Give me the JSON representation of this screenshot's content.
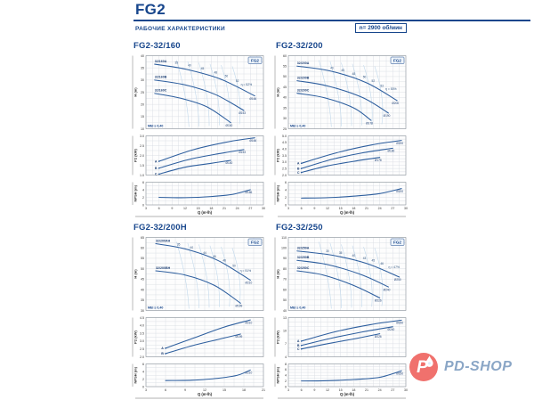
{
  "page": {
    "title": "FG2",
    "subtitle": "РАБОЧИЕ ХАРАКТЕРИСТИКИ",
    "rpm": "n= 2900 об/мин"
  },
  "logo": {
    "letter": "P",
    "text": "PD-SHOP",
    "accent": "#f0716d",
    "blue": "#8aa6c6"
  },
  "colors": {
    "brand": "#17468c",
    "curve": "#2d5e9e",
    "grid": "#d9dee3",
    "iso": "#c2d9ec"
  },
  "chart_data": [
    {
      "title": "FG2-32/160",
      "badge": "FG2",
      "mei": "MEI ≥ 0,40",
      "xlabel": "Q (m³/h)",
      "xlim": [
        3,
        30
      ],
      "xtick": 3,
      "type": "line",
      "charts": {
        "h": {
          "ylabel": "H (m)",
          "ylim": [
            10,
            40
          ],
          "grid": 2.5,
          "lstep": 5,
          "series": [
            {
              "name": "32/160A",
              "x": [
                5,
                12,
                20,
                28
              ],
              "y": [
                36.5,
                34.5,
                30.5,
                23.5
              ],
              "end": "Ø166"
            },
            {
              "name": "32/160B",
              "x": [
                5,
                12,
                19,
                25.5
              ],
              "y": [
                30,
                28,
                24,
                17.5
              ],
              "end": "Ø153"
            },
            {
              "name": "32/160C",
              "x": [
                5,
                11,
                17,
                22.5
              ],
              "y": [
                24.5,
                22.5,
                19,
                12.5
              ],
              "end": "Ø140"
            }
          ],
          "eff": {
            "x": [
              10,
              13,
              16,
              19,
              21.5,
              24
            ],
            "y": [
              36.7,
              35.7,
              34.4,
              32.7,
              31.2,
              29.2
            ],
            "v": [
              35,
              40,
              45,
              48,
              50,
              52
            ],
            "eta": "η = 52%",
            "eta_x": 24.8,
            "eta_y": 27.8
          }
        },
        "p2": {
          "ylabel": "P2 (kW)",
          "ylim": [
            1,
            3
          ],
          "grid": 0.25,
          "lstep": 0.5,
          "series": [
            {
              "name": "A",
              "x": [
                6,
                14,
                22,
                28
              ],
              "y": [
                1.7,
                2.3,
                2.7,
                2.9
              ],
              "end": "Ø166"
            },
            {
              "name": "B",
              "x": [
                6,
                13,
                20,
                25.5
              ],
              "y": [
                1.35,
                1.8,
                2.1,
                2.3
              ],
              "end": "Ø153"
            },
            {
              "name": "C",
              "x": [
                6,
                12,
                18,
                22.5
              ],
              "y": [
                1.05,
                1.4,
                1.6,
                1.75
              ],
              "end": "Ø140"
            }
          ]
        },
        "npsh": {
          "ylabel": "NPSH (m)",
          "ylim": [
            0,
            6
          ],
          "grid": 1,
          "lstep": 2,
          "series": [
            {
              "name": "",
              "x": [
                6,
                12,
                18,
                23,
                27
              ],
              "y": [
                2,
                1.9,
                2.2,
                2.8,
                4
              ],
              "end": "Ø166"
            }
          ]
        }
      }
    },
    {
      "title": "FG2-32/200",
      "badge": "FG2",
      "mei": "MEI ≥ 0,40",
      "xlabel": "Q (m³/h)",
      "xlim": [
        3,
        30
      ],
      "xtick": 3,
      "type": "line",
      "charts": {
        "h": {
          "ylabel": "H (m)",
          "ylim": [
            25,
            60
          ],
          "grid": 2.5,
          "lstep": 5,
          "series": [
            {
              "name": "32/200A",
              "x": [
                5,
                13,
                21,
                28
              ],
              "y": [
                55,
                52.5,
                47,
                38.5
              ],
              "end": "Ø200"
            },
            {
              "name": "32/200B",
              "x": [
                5,
                12,
                20,
                26
              ],
              "y": [
                48,
                45.5,
                40,
                32.5
              ],
              "end": "Ø190"
            },
            {
              "name": "32/200C",
              "x": [
                5,
                11,
                18,
                22
              ],
              "y": [
                42,
                40,
                35,
                29
              ],
              "end": "Ø178"
            }
          ],
          "eff": {
            "x": [
              13,
              15.5,
              18,
              20.5,
              22.5,
              24.5
            ],
            "y": [
              53.7,
              52.5,
              50.9,
              49.3,
              47.4,
              45.1
            ],
            "v": [
              40,
              45,
              48,
              50,
              52,
              53
            ],
            "eta": "η = 53%",
            "eta_x": 25.3,
            "eta_y": 43.5
          }
        },
        "p2": {
          "ylabel": "P2 (kW)",
          "ylim": [
            2,
            5
          ],
          "grid": 0.25,
          "lstep": 0.5,
          "series": [
            {
              "name": "A",
              "x": [
                6,
                14,
                22,
                29
              ],
              "y": [
                2.9,
                3.7,
                4.3,
                4.65
              ],
              "end": "Ø200"
            },
            {
              "name": "B",
              "x": [
                6,
                13,
                20,
                27
              ],
              "y": [
                2.5,
                3.2,
                3.7,
                4.05
              ],
              "end": "Ø190"
            },
            {
              "name": "C",
              "x": [
                6,
                12,
                18,
                24
              ],
              "y": [
                2.2,
                2.7,
                3.05,
                3.35
              ],
              "end": "Ø178"
            }
          ]
        },
        "npsh": {
          "ylabel": "NPSH (m)",
          "ylim": [
            0,
            6
          ],
          "grid": 1,
          "lstep": 2,
          "series": [
            {
              "name": "",
              "x": [
                6,
                12,
                18,
                24,
                29
              ],
              "y": [
                1.8,
                1.9,
                2.3,
                3,
                4.3
              ],
              "end": "Ø200"
            }
          ]
        }
      }
    },
    {
      "title": "FG2-32/200H",
      "badge": "FG2",
      "mei": "MEI ≥ 0,40",
      "xlabel": "Q (m³/h)",
      "xlim": [
        3,
        21
      ],
      "xtick": 3,
      "type": "line",
      "charts": {
        "h": {
          "ylabel": "H (m)",
          "ylim": [
            30,
            65
          ],
          "grid": 2.5,
          "lstep": 5,
          "series": [
            {
              "name": "32/200AH",
              "x": [
                4.5,
                9,
                14,
                19
              ],
              "y": [
                62,
                59.5,
                54,
                44.5
              ],
              "end": "Ø210"
            },
            {
              "name": "32/200BH",
              "x": [
                4.5,
                9,
                13.5,
                17.5
              ],
              "y": [
                49,
                47,
                42,
                33.5
              ],
              "end": "Ø199"
            }
          ],
          "eff": {
            "x": [
              8,
              10,
              12,
              13.5,
              15,
              16.5
            ],
            "y": [
              61.2,
              59.6,
              57.2,
              55.5,
              53.4,
              51
            ],
            "v": [
              35,
              40,
              44,
              46,
              48,
              50
            ],
            "eta": "η = 51%",
            "eta_x": 17.4,
            "eta_y": 48.5
          }
        },
        "p2": {
          "ylabel": "P2 (kW)",
          "ylim": [
            2,
            4.5
          ],
          "grid": 0.25,
          "lstep": 0.5,
          "series": [
            {
              "name": "A",
              "x": [
                6,
                11,
                15,
                19
              ],
              "y": [
                2.55,
                3.3,
                3.9,
                4.35
              ],
              "end": "Ø210"
            },
            {
              "name": "B",
              "x": [
                6,
                10,
                14,
                17.5
              ],
              "y": [
                2.2,
                2.7,
                3.1,
                3.45
              ],
              "end": "Ø199"
            }
          ]
        },
        "npsh": {
          "ylabel": "NPSH (m)",
          "ylim": [
            0,
            6
          ],
          "grid": 1,
          "lstep": 2,
          "series": [
            {
              "name": "",
              "x": [
                6,
                10,
                14,
                17,
                19
              ],
              "y": [
                1.6,
                1.7,
                2.2,
                3,
                4.4
              ],
              "end": "Ø210"
            }
          ]
        }
      }
    },
    {
      "title": "FG2-32/250",
      "badge": "FG2",
      "mei": "MEI ≥ 0,40",
      "xlabel": "Q (m³/h)",
      "xlim": [
        3,
        30
      ],
      "xtick": 3,
      "type": "line",
      "charts": {
        "h": {
          "ylabel": "H (m)",
          "ylim": [
            40,
            110
          ],
          "grid": 5,
          "lstep": 10,
          "series": [
            {
              "name": "32/250A",
              "x": [
                5,
                13,
                21,
                28.5
              ],
              "y": [
                97,
                93,
                85,
                72
              ],
              "end": "Ø250"
            },
            {
              "name": "32/250B",
              "x": [
                5,
                12,
                20,
                26
              ],
              "y": [
                88,
                84,
                74,
                62.5
              ],
              "end": "Ø240"
            },
            {
              "name": "32/250C",
              "x": [
                5,
                11,
                18,
                24
              ],
              "y": [
                78,
                74,
                64,
                52
              ],
              "end": "Ø226"
            }
          ],
          "eff": {
            "x": [
              12,
              15,
              18,
              20.5,
              22.5,
              24.5
            ],
            "y": [
              96,
              94.2,
              91.5,
              89.1,
              86.8,
              84.1
            ],
            "v": [
              30,
              35,
              40,
              43,
              45,
              46
            ],
            "eta": "η = 47%",
            "eta_x": 26,
            "eta_y": 80.5
          }
        },
        "p2": {
          "ylabel": "P2 (kW)",
          "ylim": [
            4,
            13
          ],
          "grid": 1,
          "lstep": 3,
          "series": [
            {
              "name": "A",
              "x": [
                6,
                14,
                22,
                29
              ],
              "y": [
                7.6,
                9.8,
                11.4,
                12.4
              ],
              "end": "Ø250"
            },
            {
              "name": "B",
              "x": [
                6,
                13,
                20,
                27
              ],
              "y": [
                6.6,
                8.3,
                9.7,
                10.9
              ],
              "end": "Ø240"
            },
            {
              "name": "C",
              "x": [
                6,
                12,
                18,
                24
              ],
              "y": [
                5.8,
                7,
                8.1,
                9.3
              ],
              "end": "Ø226"
            }
          ]
        },
        "npsh": {
          "ylabel": "NPSH (m)",
          "ylim": [
            0,
            8
          ],
          "grid": 1,
          "lstep": 2,
          "series": [
            {
              "name": "",
              "x": [
                6,
                12,
                18,
                24,
                29
              ],
              "y": [
                2,
                2.1,
                2.5,
                3.3,
                5.6
              ],
              "end": "Ø250"
            }
          ]
        }
      }
    }
  ]
}
